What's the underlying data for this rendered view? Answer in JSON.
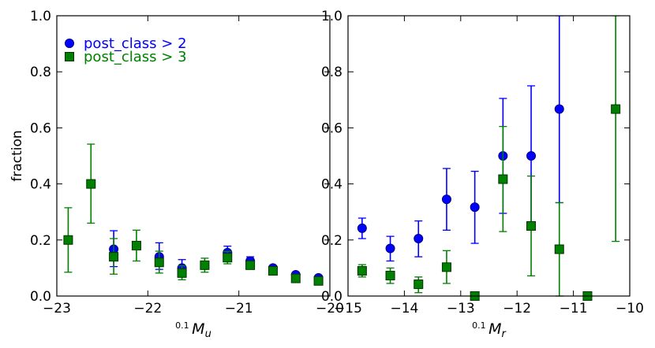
{
  "chart_data": [
    {
      "type": "scatter",
      "xlabel": "0.1 M_u",
      "ylabel": "fraction",
      "xlim": [
        -23,
        -20
      ],
      "ylim": [
        0,
        1
      ],
      "xticks": [
        -23,
        -22,
        -21,
        -20
      ],
      "xtick_labels": [
        "−23",
        "−22",
        "−21",
        "−20"
      ],
      "yticks": [
        0.0,
        0.2,
        0.4,
        0.6,
        0.8,
        1.0
      ],
      "ytick_labels": [
        "0.0",
        "0.2",
        "0.4",
        "0.6",
        "0.8",
        "1.0"
      ],
      "legend": {
        "placement": "top-left"
      },
      "series": [
        {
          "name": "post_class > 2",
          "color": "#0000ff",
          "edge_color": "#000080",
          "marker": "circle",
          "points": [
            {
              "x": -22.375,
              "y": 0.167,
              "lo": 0.105,
              "hi": 0.233
            },
            {
              "x": -21.875,
              "y": 0.14,
              "lo": 0.095,
              "hi": 0.19
            },
            {
              "x": -21.625,
              "y": 0.1,
              "lo": 0.075,
              "hi": 0.13
            },
            {
              "x": -21.125,
              "y": 0.155,
              "lo": 0.132,
              "hi": 0.178
            },
            {
              "x": -20.875,
              "y": 0.125,
              "lo": 0.111,
              "hi": 0.14
            },
            {
              "x": -20.625,
              "y": 0.1,
              "lo": 0.093,
              "hi": 0.107
            },
            {
              "x": -20.375,
              "y": 0.076,
              "lo": 0.07,
              "hi": 0.082
            },
            {
              "x": -20.125,
              "y": 0.065,
              "lo": 0.059,
              "hi": 0.071
            }
          ]
        },
        {
          "name": "post_class > 3",
          "color": "#008000",
          "edge_color": "#003300",
          "marker": "square",
          "points": [
            {
              "x": -22.875,
              "y": 0.2,
              "lo": 0.085,
              "hi": 0.315
            },
            {
              "x": -22.625,
              "y": 0.4,
              "lo": 0.26,
              "hi": 0.542
            },
            {
              "x": -22.375,
              "y": 0.14,
              "lo": 0.078,
              "hi": 0.205
            },
            {
              "x": -22.125,
              "y": 0.18,
              "lo": 0.125,
              "hi": 0.235
            },
            {
              "x": -21.875,
              "y": 0.12,
              "lo": 0.082,
              "hi": 0.16
            },
            {
              "x": -21.625,
              "y": 0.082,
              "lo": 0.058,
              "hi": 0.108
            },
            {
              "x": -21.375,
              "y": 0.11,
              "lo": 0.085,
              "hi": 0.135
            },
            {
              "x": -21.125,
              "y": 0.137,
              "lo": 0.115,
              "hi": 0.159
            },
            {
              "x": -20.875,
              "y": 0.11,
              "lo": 0.098,
              "hi": 0.123
            },
            {
              "x": -20.625,
              "y": 0.09,
              "lo": 0.083,
              "hi": 0.097
            },
            {
              "x": -20.375,
              "y": 0.063,
              "lo": 0.058,
              "hi": 0.068
            },
            {
              "x": -20.125,
              "y": 0.054,
              "lo": 0.049,
              "hi": 0.059
            }
          ]
        }
      ]
    },
    {
      "type": "scatter",
      "xlabel": "0.1 M_r",
      "ylabel": "",
      "xlim": [
        -15,
        -10
      ],
      "ylim": [
        0,
        1
      ],
      "xticks": [
        -15,
        -14,
        -13,
        -12,
        -11,
        -10
      ],
      "xtick_labels": [
        "−15",
        "−14",
        "−13",
        "−12",
        "−11",
        "−10"
      ],
      "yticks": [
        0.0,
        0.2,
        0.4,
        0.6,
        0.8,
        1.0
      ],
      "ytick_labels": [
        "0.0",
        "0.2",
        "0.4",
        "0.6",
        "0.8",
        "1.0"
      ],
      "series": [
        {
          "name": "post_class > 2",
          "color": "#0000ff",
          "edge_color": "#000080",
          "marker": "circle",
          "points": [
            {
              "x": -14.75,
              "y": 0.242,
              "lo": 0.205,
              "hi": 0.278
            },
            {
              "x": -14.25,
              "y": 0.17,
              "lo": 0.125,
              "hi": 0.213
            },
            {
              "x": -13.75,
              "y": 0.205,
              "lo": 0.14,
              "hi": 0.268
            },
            {
              "x": -13.25,
              "y": 0.345,
              "lo": 0.235,
              "hi": 0.455
            },
            {
              "x": -12.75,
              "y": 0.317,
              "lo": 0.188,
              "hi": 0.445
            },
            {
              "x": -12.25,
              "y": 0.5,
              "lo": 0.295,
              "hi": 0.705
            },
            {
              "x": -11.75,
              "y": 0.5,
              "lo": 0.25,
              "hi": 0.75
            },
            {
              "x": -11.25,
              "y": 0.667,
              "lo": 0.333,
              "hi": 1.0
            }
          ]
        },
        {
          "name": "post_class > 3",
          "color": "#008000",
          "edge_color": "#003300",
          "marker": "square",
          "points": [
            {
              "x": -14.75,
              "y": 0.09,
              "lo": 0.068,
              "hi": 0.112
            },
            {
              "x": -14.25,
              "y": 0.073,
              "lo": 0.045,
              "hi": 0.1
            },
            {
              "x": -13.75,
              "y": 0.042,
              "lo": 0.012,
              "hi": 0.068
            },
            {
              "x": -13.25,
              "y": 0.103,
              "lo": 0.045,
              "hi": 0.162
            },
            {
              "x": -12.75,
              "y": 0.0,
              "lo": 0.0,
              "hi": 0.0
            },
            {
              "x": -12.25,
              "y": 0.417,
              "lo": 0.23,
              "hi": 0.605
            },
            {
              "x": -11.75,
              "y": 0.25,
              "lo": 0.072,
              "hi": 0.428
            },
            {
              "x": -11.25,
              "y": 0.167,
              "lo": 0.0,
              "hi": 0.333
            },
            {
              "x": -10.75,
              "y": 0.0,
              "lo": 0.0,
              "hi": 0.0
            },
            {
              "x": -10.25,
              "y": 0.667,
              "lo": 0.195,
              "hi": 1.0
            }
          ]
        }
      ]
    }
  ]
}
